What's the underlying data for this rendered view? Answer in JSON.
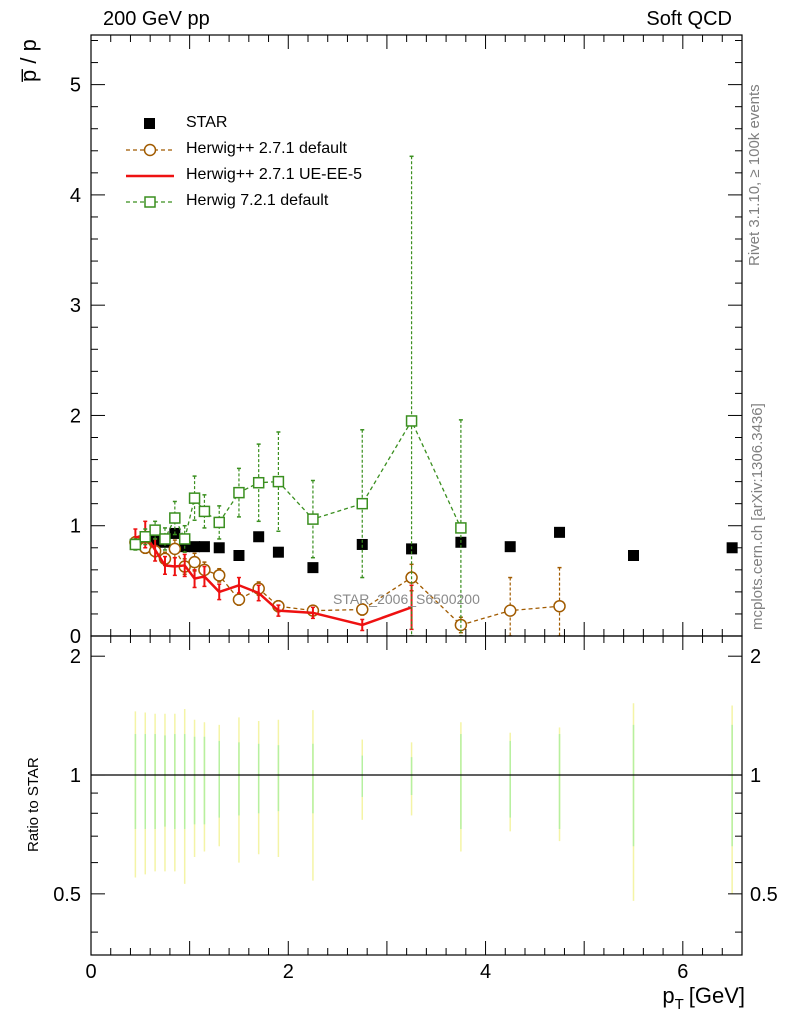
{
  "header": {
    "left_title": "200 GeV pp",
    "right_title": "Soft QCD"
  },
  "side": {
    "rivet": "Rivet 3.1.10, ≥ 100k events",
    "source": "mcplots.cern.ch [arXiv:1306.3436]"
  },
  "chart_data": {
    "type": "scatter",
    "title": "",
    "ylabel_main": "p̅ / p",
    "ylabel_ratio": "Ratio to STAR",
    "xlabel": "p_T [GeV]",
    "xlabel_main": "p",
    "xlabel_sub": "T",
    "xlabel_unit": "[GeV]",
    "analysis_label": "STAR_2006_S6500200",
    "xlim": [
      0,
      6.6
    ],
    "ylim_main": [
      0,
      5.45
    ],
    "ylim_ratio": [
      0.35,
      2.25
    ],
    "x_ticks": [
      0,
      2,
      4,
      6
    ],
    "y_ticks_main": [
      0,
      1,
      2,
      3,
      4,
      5
    ],
    "y_ticks_ratio": [
      0.5,
      1,
      2
    ],
    "legend_position": "top-left",
    "series": [
      {
        "name": "STAR",
        "color": "#000000",
        "marker": "filled-square",
        "x": [
          0.45,
          0.55,
          0.65,
          0.75,
          0.85,
          0.95,
          1.05,
          1.15,
          1.3,
          1.5,
          1.7,
          1.9,
          2.25,
          2.75,
          3.25,
          3.75,
          4.25,
          4.75,
          5.5,
          6.5
        ],
        "y": [
          0.83,
          0.85,
          0.86,
          0.85,
          0.93,
          0.81,
          0.81,
          0.81,
          0.8,
          0.73,
          0.9,
          0.76,
          0.62,
          0.83,
          0.79,
          0.85,
          0.81,
          0.94,
          0.73,
          0.8
        ]
      },
      {
        "name": "Herwig++ 2.7.1 default",
        "color": "#a15b00",
        "marker": "open-circle",
        "x": [
          0.45,
          0.55,
          0.65,
          0.75,
          0.85,
          0.95,
          1.05,
          1.15,
          1.3,
          1.5,
          1.7,
          1.9,
          2.25,
          2.75,
          3.25,
          3.75,
          4.25,
          4.75
        ],
        "y": [
          0.85,
          0.8,
          0.77,
          0.7,
          0.79,
          0.63,
          0.67,
          0.6,
          0.55,
          0.33,
          0.43,
          0.27,
          0.23,
          0.24,
          0.53,
          0.1,
          0.23,
          0.27
        ],
        "err": [
          0.05,
          0.05,
          0.05,
          0.06,
          0.08,
          0.07,
          0.08,
          0.07,
          0.06,
          0.05,
          0.06,
          0.05,
          0.04,
          0.05,
          0.12,
          0.07,
          0.3,
          0.35
        ]
      },
      {
        "name": "Herwig++ 2.7.1 UE-EE-5",
        "color": "#ee1111",
        "marker": "line",
        "x": [
          0.45,
          0.55,
          0.65,
          0.75,
          0.85,
          0.95,
          1.05,
          1.15,
          1.3,
          1.5,
          1.7,
          1.9,
          2.25,
          2.75,
          3.25
        ],
        "y": [
          0.89,
          0.92,
          0.78,
          0.64,
          0.63,
          0.64,
          0.52,
          0.54,
          0.4,
          0.46,
          0.39,
          0.23,
          0.21,
          0.1,
          0.26
        ],
        "err": [
          0.08,
          0.12,
          0.1,
          0.08,
          0.08,
          0.1,
          0.08,
          0.09,
          0.07,
          0.07,
          0.07,
          0.05,
          0.05,
          0.05,
          0.2
        ]
      },
      {
        "name": "Herwig 7.2.1 default",
        "color": "#3a8f1f",
        "marker": "open-square",
        "x": [
          0.45,
          0.55,
          0.65,
          0.75,
          0.85,
          0.95,
          1.05,
          1.15,
          1.3,
          1.5,
          1.7,
          1.9,
          2.25,
          2.75,
          3.25,
          3.75
        ],
        "y": [
          0.83,
          0.9,
          0.96,
          0.88,
          1.07,
          0.88,
          1.25,
          1.13,
          1.03,
          1.3,
          1.39,
          1.4,
          1.06,
          1.2,
          1.95,
          0.98
        ],
        "err": [
          0.05,
          0.07,
          0.08,
          0.1,
          0.15,
          0.12,
          0.2,
          0.15,
          0.15,
          0.22,
          0.35,
          0.45,
          0.35,
          0.67,
          2.4,
          0.98
        ]
      }
    ],
    "ratio_band": {
      "x": [
        0.45,
        0.55,
        0.65,
        0.75,
        0.85,
        0.95,
        1.05,
        1.15,
        1.3,
        1.5,
        1.7,
        1.9,
        2.25,
        2.75,
        3.25,
        3.75,
        4.25,
        4.75,
        5.5,
        6.5
      ],
      "stat": [
        0.27,
        0.27,
        0.27,
        0.26,
        0.27,
        0.27,
        0.25,
        0.25,
        0.22,
        0.21,
        0.2,
        0.19,
        0.2,
        0.12,
        0.11,
        0.27,
        0.22,
        0.27,
        0.34,
        0.34
      ],
      "total": [
        0.45,
        0.44,
        0.43,
        0.43,
        0.43,
        0.47,
        0.38,
        0.36,
        0.34,
        0.4,
        0.37,
        0.38,
        0.46,
        0.23,
        0.21,
        0.36,
        0.28,
        0.32,
        0.52,
        0.5
      ],
      "stat_color": "#b6f0a0",
      "total_color": "#f4f4a6"
    }
  }
}
